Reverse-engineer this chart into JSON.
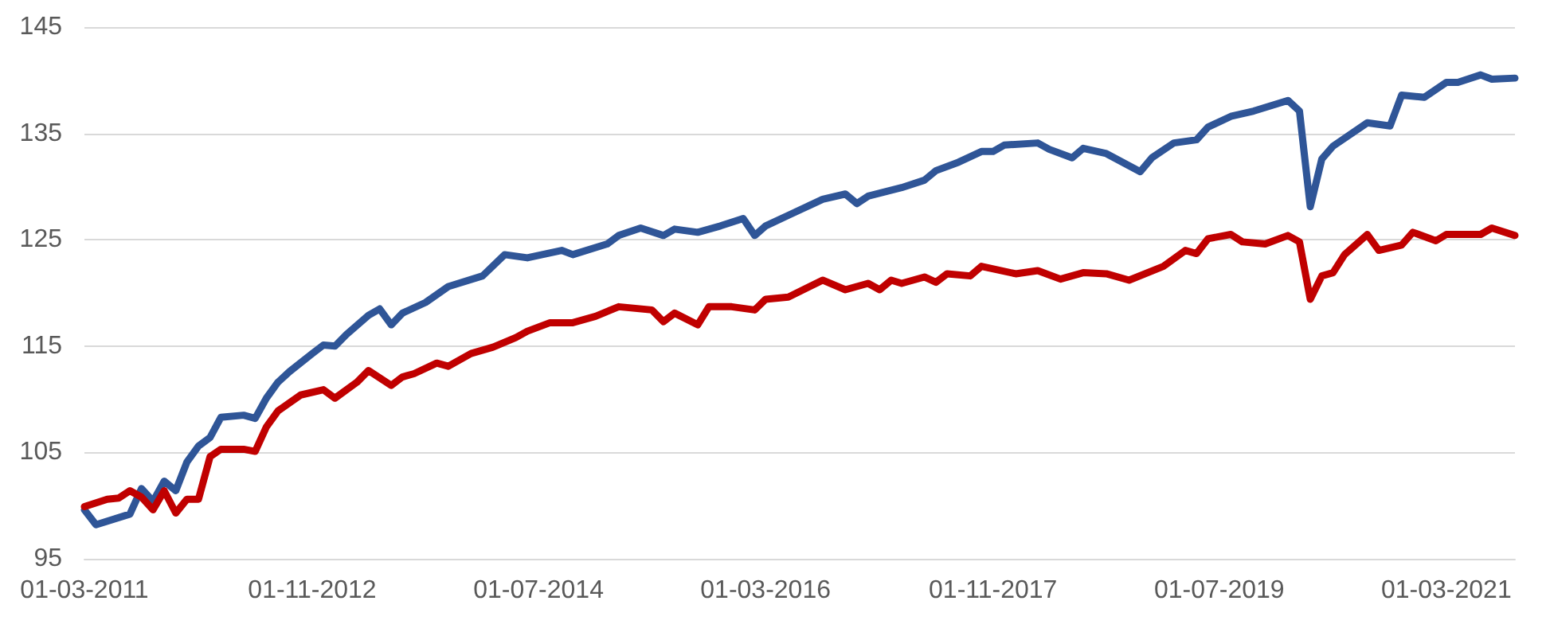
{
  "chart_data": {
    "type": "line",
    "xlim": [
      "2011-03",
      "2021-09"
    ],
    "xticks": [
      {
        "value": "2011-03-01",
        "label": "01-03-2011"
      },
      {
        "value": "2012-11-01",
        "label": "01-11-2012"
      },
      {
        "value": "2014-07-01",
        "label": "01-07-2014"
      },
      {
        "value": "2016-03-01",
        "label": "01-03-2016"
      },
      {
        "value": "2017-11-01",
        "label": "01-11-2017"
      },
      {
        "value": "2019-07-01",
        "label": "01-07-2019"
      },
      {
        "value": "2021-03-01",
        "label": "01-03-2021"
      }
    ],
    "ylim": [
      95,
      145
    ],
    "yticks": [
      95,
      105,
      115,
      125,
      135,
      145
    ],
    "grid": "y",
    "marker": "none",
    "line_style": "solid",
    "series": [
      {
        "color": "#2f5597",
        "x": [
          "2011-03",
          "2011-04",
          "2011-07",
          "2011-08",
          "2011-09",
          "2011-10",
          "2011-11",
          "2011-12",
          "2012-01",
          "2012-02",
          "2012-03",
          "2012-05",
          "2012-06",
          "2012-07",
          "2012-08",
          "2012-09",
          "2012-11",
          "2012-12",
          "2013-01",
          "2013-02",
          "2013-04",
          "2013-05",
          "2013-06",
          "2013-07",
          "2013-09",
          "2013-11",
          "2014-02",
          "2014-04",
          "2014-06",
          "2014-09",
          "2014-10",
          "2015-01",
          "2015-02",
          "2015-04",
          "2015-06",
          "2015-07",
          "2015-09",
          "2015-11",
          "2016-01",
          "2016-02",
          "2016-03",
          "2016-05",
          "2016-08",
          "2016-10",
          "2016-11",
          "2016-12",
          "2017-03",
          "2017-05",
          "2017-06",
          "2017-08",
          "2017-10",
          "2017-11",
          "2017-12",
          "2018-03",
          "2018-04",
          "2018-06",
          "2018-07",
          "2018-09",
          "2018-12",
          "2019-01",
          "2019-03",
          "2019-05",
          "2019-06",
          "2019-08",
          "2019-10",
          "2020-01",
          "2020-02",
          "2020-03",
          "2020-04",
          "2020-05",
          "2020-08",
          "2020-10",
          "2020-11",
          "2021-01",
          "2021-03",
          "2021-04",
          "2021-06",
          "2021-07",
          "2021-09"
        ],
        "values": [
          99.6,
          98.2,
          99.2,
          101.6,
          100.4,
          102.3,
          101.4,
          104.1,
          105.6,
          106.4,
          108.3,
          108.5,
          108.2,
          110.1,
          111.6,
          112.6,
          114.3,
          115.1,
          115.0,
          116.1,
          117.9,
          118.5,
          117.0,
          118.1,
          119.1,
          120.6,
          121.6,
          123.6,
          123.3,
          124.0,
          123.6,
          124.6,
          125.4,
          126.1,
          125.4,
          126.0,
          125.7,
          126.3,
          127.0,
          125.4,
          126.3,
          127.3,
          128.8,
          129.3,
          128.4,
          129.1,
          129.9,
          130.6,
          131.5,
          132.3,
          133.3,
          133.3,
          133.9,
          134.1,
          133.5,
          132.7,
          133.6,
          133.1,
          131.4,
          132.7,
          134.1,
          134.4,
          135.6,
          136.6,
          137.1,
          138.1,
          137.1,
          128.1,
          132.6,
          133.8,
          136.0,
          135.7,
          138.6,
          138.4,
          139.8,
          139.8,
          140.5,
          140.1,
          140.2
        ]
      },
      {
        "color": "#c00000",
        "x": [
          "2011-03",
          "2011-05",
          "2011-06",
          "2011-07",
          "2011-08",
          "2011-09",
          "2011-10",
          "2011-11",
          "2011-12",
          "2012-01",
          "2012-02",
          "2012-03",
          "2012-05",
          "2012-06",
          "2012-07",
          "2012-08",
          "2012-10",
          "2012-12",
          "2013-01",
          "2013-03",
          "2013-04",
          "2013-06",
          "2013-07",
          "2013-08",
          "2013-10",
          "2013-11",
          "2014-01",
          "2014-03",
          "2014-05",
          "2014-06",
          "2014-08",
          "2014-10",
          "2014-12",
          "2015-02",
          "2015-05",
          "2015-06",
          "2015-07",
          "2015-09",
          "2015-10",
          "2015-12",
          "2016-02",
          "2016-03",
          "2016-05",
          "2016-08",
          "2016-10",
          "2016-12",
          "2017-01",
          "2017-02",
          "2017-03",
          "2017-05",
          "2017-06",
          "2017-07",
          "2017-09",
          "2017-10",
          "2018-01",
          "2018-03",
          "2018-05",
          "2018-07",
          "2018-09",
          "2018-11",
          "2019-02",
          "2019-04",
          "2019-05",
          "2019-06",
          "2019-08",
          "2019-09",
          "2019-11",
          "2020-01",
          "2020-02",
          "2020-03",
          "2020-04",
          "2020-05",
          "2020-06",
          "2020-08",
          "2020-09",
          "2020-11",
          "2020-12",
          "2021-02",
          "2021-03",
          "2021-06",
          "2021-07",
          "2021-09"
        ],
        "values": [
          99.9,
          100.6,
          100.7,
          101.4,
          100.8,
          99.6,
          101.4,
          99.3,
          100.6,
          100.6,
          104.6,
          105.3,
          105.3,
          105.1,
          107.4,
          108.9,
          110.4,
          110.9,
          110.1,
          111.6,
          112.7,
          111.3,
          112.1,
          112.4,
          113.4,
          113.1,
          114.3,
          114.9,
          115.8,
          116.4,
          117.2,
          117.2,
          117.8,
          118.7,
          118.4,
          117.3,
          118.1,
          117.0,
          118.7,
          118.7,
          118.4,
          119.4,
          119.6,
          121.2,
          120.3,
          120.9,
          120.3,
          121.2,
          120.9,
          121.5,
          121.0,
          121.8,
          121.6,
          122.5,
          121.8,
          122.1,
          121.3,
          121.9,
          121.8,
          121.2,
          122.5,
          124.0,
          123.7,
          125.1,
          125.5,
          124.8,
          124.6,
          125.4,
          124.8,
          119.4,
          121.6,
          121.9,
          123.6,
          125.5,
          124.0,
          124.5,
          125.7,
          124.9,
          125.5,
          125.5,
          126.1,
          125.4
        ]
      }
    ]
  }
}
